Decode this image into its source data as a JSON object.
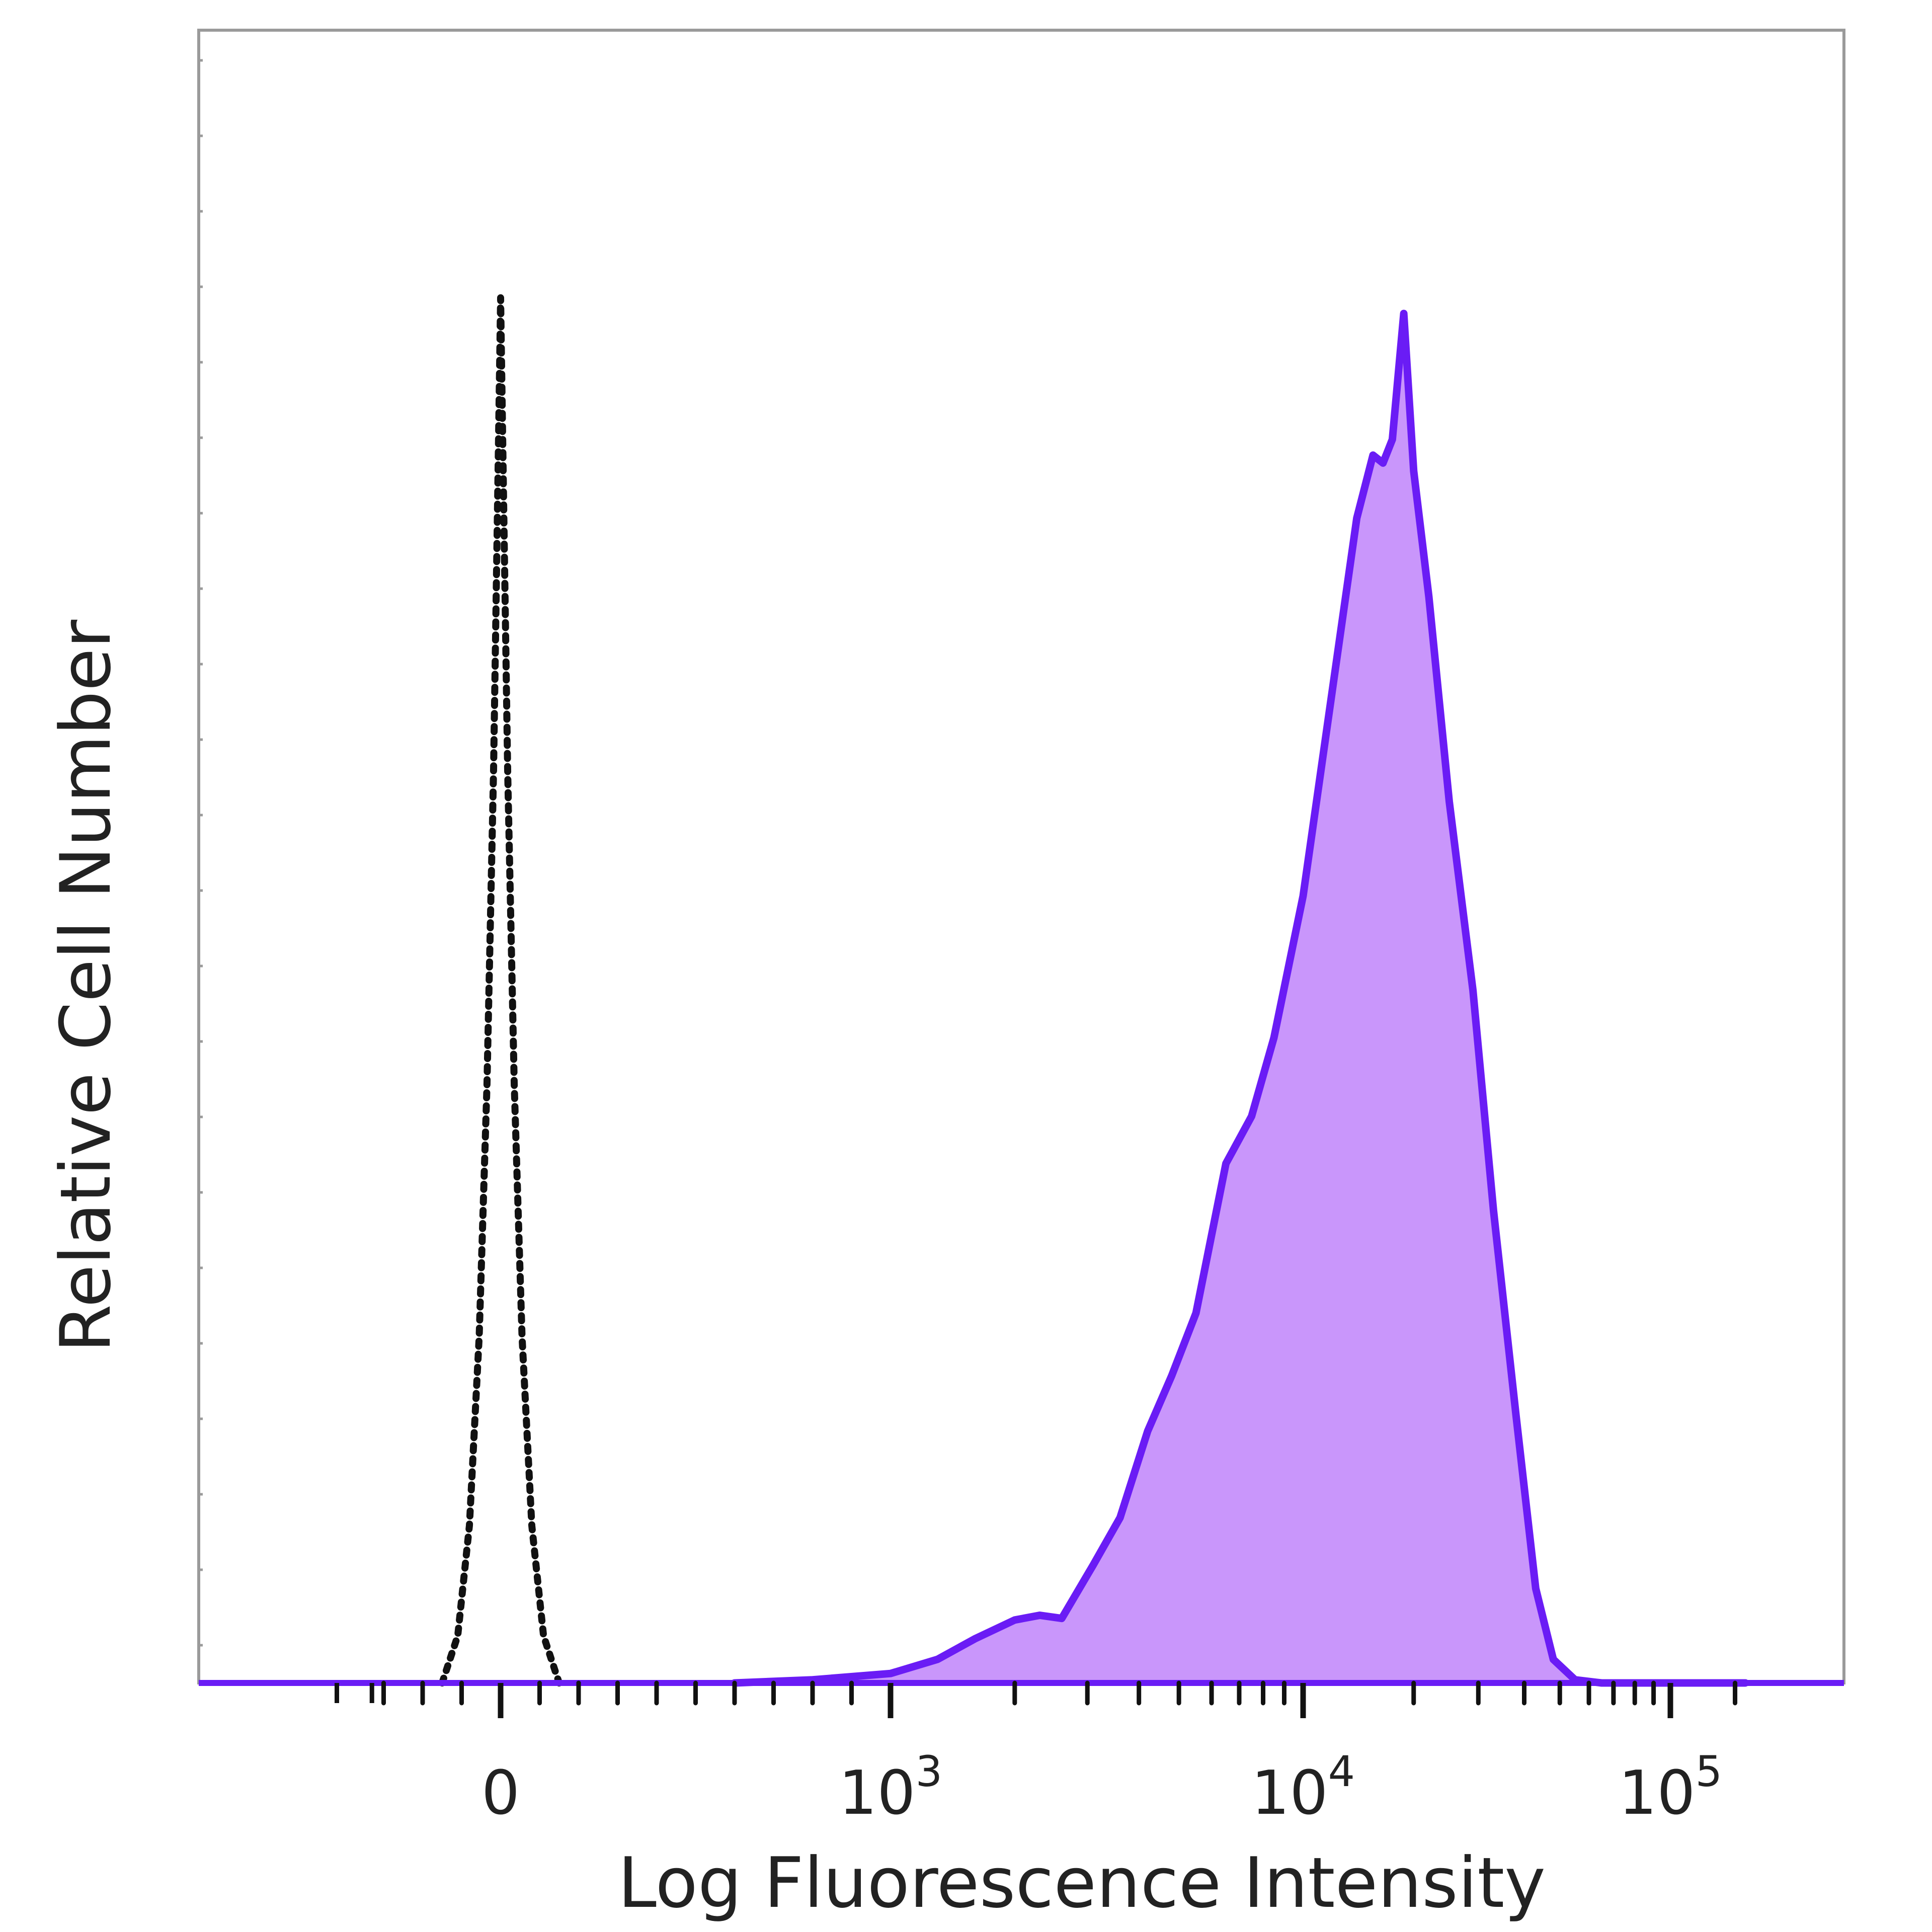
{
  "chart_data": {
    "type": "area",
    "title": "",
    "xlabel": "Log Fluorescence Intensity",
    "ylabel": "Relative Cell Number",
    "x_scale": "biexponential",
    "xlim": [
      -400,
      160000
    ],
    "ylim": [
      0,
      105
    ],
    "grid": false,
    "legend": "none",
    "x_ticks": [
      {
        "value": 0,
        "base": "0",
        "exp": ""
      },
      {
        "value": 1000,
        "base": "10",
        "exp": "3"
      },
      {
        "value": 10000,
        "base": "10",
        "exp": "4"
      },
      {
        "value": 100000,
        "base": "10",
        "exp": "5"
      }
    ],
    "series": [
      {
        "style": "dotted",
        "color": "#111111",
        "fill": "none",
        "points": [
          [
            -150,
            0
          ],
          [
            -110,
            3
          ],
          [
            -80,
            10
          ],
          [
            -55,
            22
          ],
          [
            -35,
            38
          ],
          [
            -18,
            58
          ],
          [
            -6,
            78
          ],
          [
            0,
            88
          ],
          [
            6,
            78
          ],
          [
            18,
            58
          ],
          [
            35,
            38
          ],
          [
            55,
            22
          ],
          [
            80,
            10
          ],
          [
            110,
            3
          ],
          [
            150,
            0
          ]
        ]
      },
      {
        "style": "solid",
        "color": "#6a1cf5",
        "fill": "#c996fb",
        "points": [
          [
            600,
            0
          ],
          [
            800,
            0.2
          ],
          [
            1000,
            0.6
          ],
          [
            1300,
            1.5
          ],
          [
            1600,
            2.8
          ],
          [
            2000,
            4.0
          ],
          [
            2300,
            4.3
          ],
          [
            2600,
            4.1
          ],
          [
            3100,
            7.5
          ],
          [
            3600,
            10.5
          ],
          [
            4200,
            16
          ],
          [
            4800,
            19.5
          ],
          [
            5500,
            23.5
          ],
          [
            6500,
            33
          ],
          [
            7500,
            36
          ],
          [
            8500,
            41
          ],
          [
            10000,
            50
          ],
          [
            12000,
            63
          ],
          [
            14000,
            74
          ],
          [
            15500,
            78
          ],
          [
            16500,
            77.5
          ],
          [
            17500,
            79
          ],
          [
            18800,
            87
          ],
          [
            20000,
            77
          ],
          [
            22000,
            69
          ],
          [
            25000,
            56
          ],
          [
            29000,
            44
          ],
          [
            33000,
            30
          ],
          [
            38000,
            17
          ],
          [
            43000,
            6
          ],
          [
            48000,
            1.5
          ],
          [
            55000,
            0.2
          ],
          [
            65000,
            0
          ],
          [
            160000,
            0
          ]
        ]
      }
    ]
  }
}
